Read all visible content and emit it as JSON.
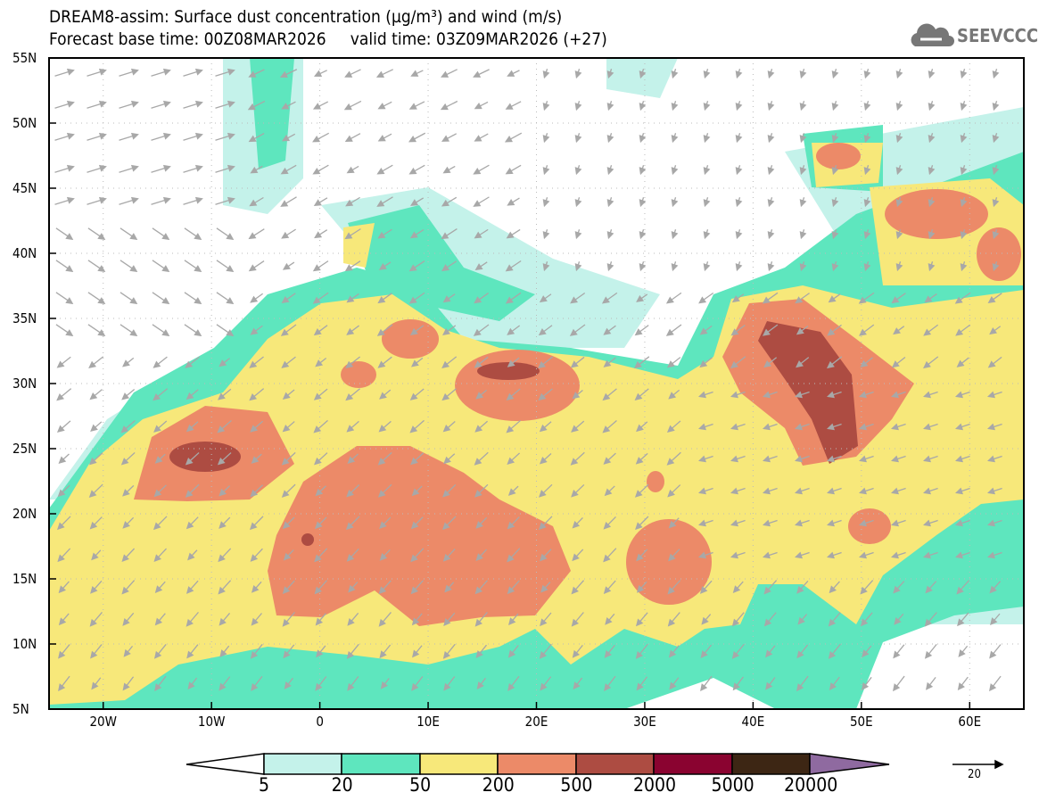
{
  "header": {
    "title": "DREAM8-assim: Surface dust concentration (µg/m³) and wind (m/s)",
    "subtitle": "Forecast base time: 00Z08MAR2026     valid time: 03Z09MAR2026 (+27)",
    "logo_text": "SEEVCCC"
  },
  "axes": {
    "lat_labels": [
      "55N",
      "50N",
      "45N",
      "40N",
      "35N",
      "30N",
      "25N",
      "20N",
      "15N",
      "10N",
      "5N"
    ],
    "lon_labels": [
      "20W",
      "10W",
      "0",
      "10E",
      "20E",
      "30E",
      "40E",
      "50E",
      "60E"
    ]
  },
  "legend": {
    "labels": [
      "5",
      "20",
      "50",
      "200",
      "500",
      "2000",
      "5000",
      "20000"
    ],
    "colors": [
      "#ffffff",
      "#c4f2ea",
      "#5ee6be",
      "#f7e87a",
      "#ec8a68",
      "#ad4c42",
      "#8a0330",
      "#3d2614",
      "#8f6aa0"
    ]
  },
  "wind_reference": {
    "value": "20"
  }
}
